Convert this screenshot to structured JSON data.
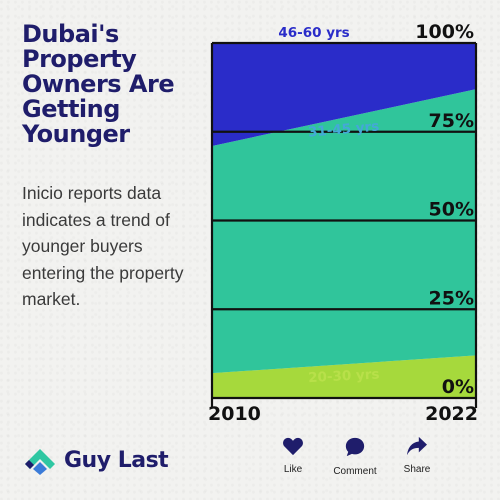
{
  "title": "Dubai's Property Owners Are Getting Younger",
  "description": "Inicio reports data indicates a trend of younger buyers entering the property market.",
  "brand": {
    "name": "Guy Last",
    "logo_icon": "guylast-logo-icon"
  },
  "actions": [
    {
      "label": "Like",
      "icon": "heart-icon"
    },
    {
      "label": "Comment",
      "icon": "comment-bubble-icon"
    },
    {
      "label": "Share",
      "icon": "share-arrow-icon"
    }
  ],
  "colors": {
    "band_46_60": "#2a2cc9",
    "band_31_45": "#30c59b",
    "band_20_30": "#a6d93c",
    "band_label_top": "#2a2cc9",
    "band_label_mid": "#44a8d8",
    "band_label_bottom": "#b8e04a",
    "ink": "#111111",
    "navy": "#1f1d6b"
  },
  "chart_data": {
    "type": "area",
    "stacked": true,
    "percent": true,
    "x": [
      "2010",
      "2022"
    ],
    "series": [
      {
        "name": "20-30 yrs",
        "values": [
          7,
          12
        ]
      },
      {
        "name": "31-45 yrs",
        "values": [
          64,
          75
        ]
      },
      {
        "name": "46-60 yrs",
        "values": [
          29,
          13
        ]
      }
    ],
    "yticks": [
      "0%",
      "25%",
      "50%",
      "75%",
      "100%"
    ],
    "ylim": [
      0,
      100
    ],
    "grid": true
  }
}
